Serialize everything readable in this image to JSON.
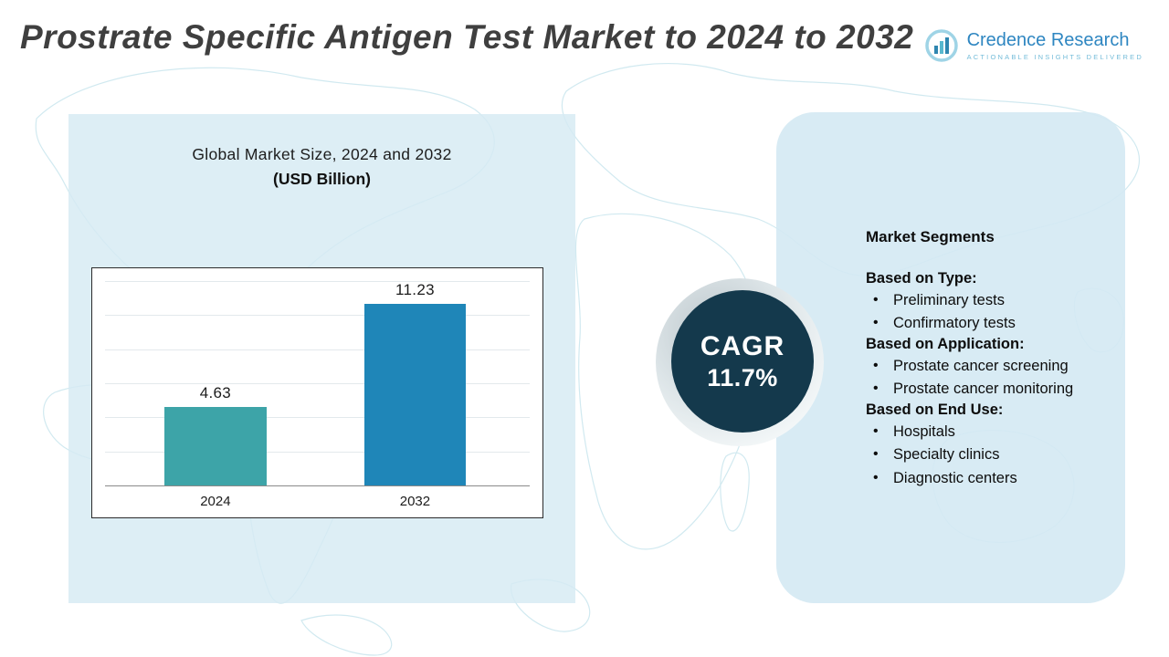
{
  "header": {
    "title": "Prostrate Specific Antigen Test Market to 2024 to 2032",
    "logo": {
      "name": "Credence Research",
      "tagline": "Actionable Insights Delivered"
    }
  },
  "chart_panel": {
    "title_line1": "Global Market Size, 2024 and 2032",
    "title_line2": "(USD Billion)"
  },
  "chart_data": {
    "type": "bar",
    "title": "Global Market Size, 2024 and 2032 (USD Billion)",
    "categories": [
      "2024",
      "2032"
    ],
    "values": [
      4.63,
      11.23
    ],
    "value_labels": [
      "4.63",
      "11.23"
    ],
    "ylim": [
      0,
      12
    ],
    "grid": true,
    "legend": "none",
    "bar_colors": [
      "#3da4a8",
      "#1f86b8"
    ]
  },
  "cagr": {
    "label": "CAGR",
    "value": "11.7%"
  },
  "segments": {
    "heading": "Market Segments",
    "groups": [
      {
        "title": "Based on Type:",
        "items": [
          "Preliminary tests",
          "Confirmatory tests"
        ]
      },
      {
        "title": "Based on Application:",
        "items": [
          "Prostate cancer screening",
          "Prostate cancer monitoring"
        ]
      },
      {
        "title": "Based on End Use:",
        "items": [
          "Hospitals",
          "Specialty clinics",
          "Diagnostic centers"
        ]
      }
    ]
  },
  "colors": {
    "bar_2024": "#3da4a8",
    "bar_2032": "#1f86b8",
    "cagr_circle": "#14394c",
    "panel_blue": "#d5eaf3",
    "logo_blue": "#2e86c1",
    "map_line": "#c9e6ee",
    "title_gray": "#3f3f3f"
  }
}
